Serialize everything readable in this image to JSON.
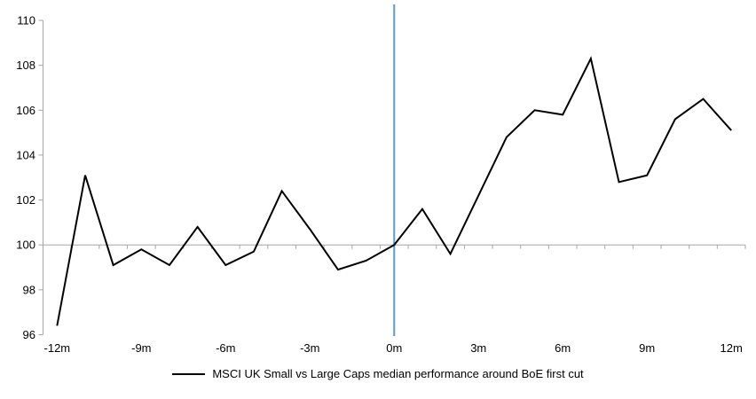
{
  "chart": {
    "legend_label": "MSCI UK Small vs Large Caps median performance around BoE first cut"
  },
  "chart_data": {
    "type": "line",
    "title": "",
    "x_months": [
      -12,
      -11,
      -10,
      -9,
      -8,
      -7,
      -6,
      -5,
      -4,
      -3,
      -2,
      -1,
      0,
      1,
      2,
      3,
      4,
      5,
      6,
      7,
      8,
      9,
      10,
      11,
      12
    ],
    "series": [
      {
        "name": "MSCI UK Small vs Large Caps median performance around BoE first cut",
        "color": "#000000",
        "values": [
          96.4,
          103.1,
          99.1,
          99.8,
          99.1,
          100.8,
          99.1,
          99.7,
          102.4,
          100.7,
          98.9,
          99.3,
          100.0,
          101.6,
          99.6,
          102.2,
          104.8,
          106.0,
          105.8,
          108.3,
          102.8,
          103.1,
          105.6,
          106.5,
          105.1
        ]
      }
    ],
    "x_tick_labels": [
      "-12m",
      "-9m",
      "-6m",
      "-3m",
      "0m",
      "3m",
      "6m",
      "9m",
      "12m"
    ],
    "x_tick_months": [
      -12,
      -9,
      -6,
      -3,
      0,
      3,
      6,
      9,
      12
    ],
    "y_ticks": [
      96,
      98,
      100,
      102,
      104,
      106,
      108,
      110
    ],
    "ylim": [
      96,
      110
    ],
    "axis_cross_value": 100,
    "event_line_x": 0,
    "grid": "off",
    "legend_position": "bottom",
    "colors": {
      "series": "#000000",
      "event_line": "#5B9BD5",
      "axis": "#A6A6A6",
      "text": "#000000"
    }
  }
}
